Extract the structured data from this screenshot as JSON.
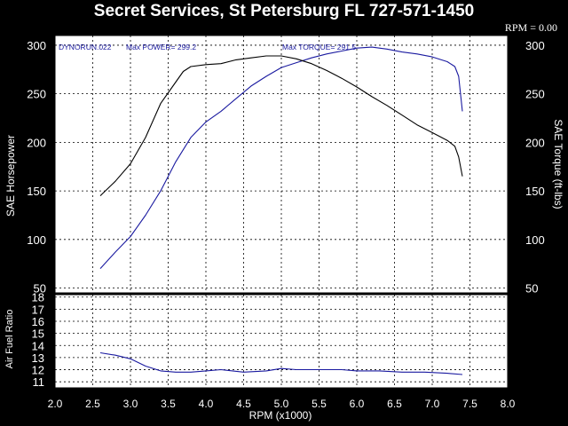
{
  "header": {
    "title": "Secret Services, St Petersburg FL 727-571-1450",
    "rpm_readout": "RPM = 0.00"
  },
  "colors": {
    "background": "#000000",
    "plot_background": "#ffffff",
    "power_curve": "#000000",
    "torque_curve": "#1a1aa0",
    "afr_curve": "#1a1aa0",
    "info_text": "#1a1aa0",
    "grid": "#000000"
  },
  "chart_data": [
    {
      "type": "line",
      "panel": "main",
      "info": {
        "run_label": "DYNORUN.022",
        "max_power_label": "Max POWER= 299.2",
        "max_torque_label": "Max TORQUE= 291.5"
      },
      "ylabel": "SAE Horsepower",
      "ylabel_right": "SAE Torque (ft-lbs)",
      "ylim": [
        45,
        310
      ],
      "y_ticks": [
        50,
        100,
        150,
        200,
        250,
        300
      ],
      "xlim": [
        2.0,
        8.0
      ],
      "grid": true,
      "series": [
        {
          "key": "power",
          "x": [
            2.6,
            2.8,
            3.0,
            3.2,
            3.4,
            3.5,
            3.6,
            3.8,
            4.0,
            4.2,
            4.4,
            4.6,
            4.8,
            5.0,
            5.2,
            5.4,
            5.6,
            5.8,
            6.0,
            6.2,
            6.4,
            6.6,
            6.8,
            7.0,
            7.2,
            7.3,
            7.35,
            7.4
          ],
          "y": [
            70,
            87,
            103,
            125,
            150,
            165,
            180,
            205,
            221,
            232,
            245,
            258,
            268,
            277,
            282,
            287,
            291,
            294,
            297,
            298,
            296,
            293,
            291,
            288,
            283,
            278,
            268,
            232
          ]
        },
        {
          "key": "torque",
          "x": [
            2.6,
            2.8,
            3.0,
            3.2,
            3.4,
            3.6,
            3.7,
            3.8,
            4.0,
            4.2,
            4.4,
            4.6,
            4.8,
            5.0,
            5.2,
            5.4,
            5.6,
            5.8,
            6.0,
            6.2,
            6.4,
            6.6,
            6.8,
            7.0,
            7.2,
            7.3,
            7.35,
            7.4
          ],
          "y": [
            145,
            160,
            178,
            205,
            240,
            262,
            273,
            278,
            280,
            281,
            285,
            287,
            289,
            289,
            286,
            281,
            274,
            266,
            257,
            247,
            238,
            228,
            218,
            210,
            202,
            196,
            185,
            165
          ]
        }
      ]
    },
    {
      "type": "line",
      "panel": "afr",
      "xlabel": "RPM (x1000)",
      "ylabel": "Air Fuel Ratio",
      "ylim": [
        10.5,
        18.2
      ],
      "y_ticks": [
        11,
        12,
        13,
        14,
        15,
        16,
        17,
        18
      ],
      "xlim": [
        2.0,
        8.0
      ],
      "x_ticks": [
        "2.0",
        "2.5",
        "3.0",
        "3.5",
        "4.0",
        "4.5",
        "5.0",
        "5.5",
        "6.0",
        "6.5",
        "7.0",
        "7.5",
        "8.0"
      ],
      "grid": true,
      "series": [
        {
          "key": "afr",
          "x": [
            2.6,
            2.8,
            3.0,
            3.2,
            3.4,
            3.6,
            3.8,
            4.0,
            4.2,
            4.5,
            4.8,
            5.0,
            5.2,
            5.5,
            5.8,
            6.0,
            6.3,
            6.6,
            6.9,
            7.2,
            7.4
          ],
          "y": [
            13.4,
            13.2,
            12.9,
            12.3,
            11.9,
            11.8,
            11.8,
            11.9,
            12.0,
            11.8,
            11.9,
            12.1,
            12.0,
            12.0,
            12.0,
            11.9,
            11.9,
            11.8,
            11.8,
            11.7,
            11.6
          ]
        }
      ]
    }
  ]
}
